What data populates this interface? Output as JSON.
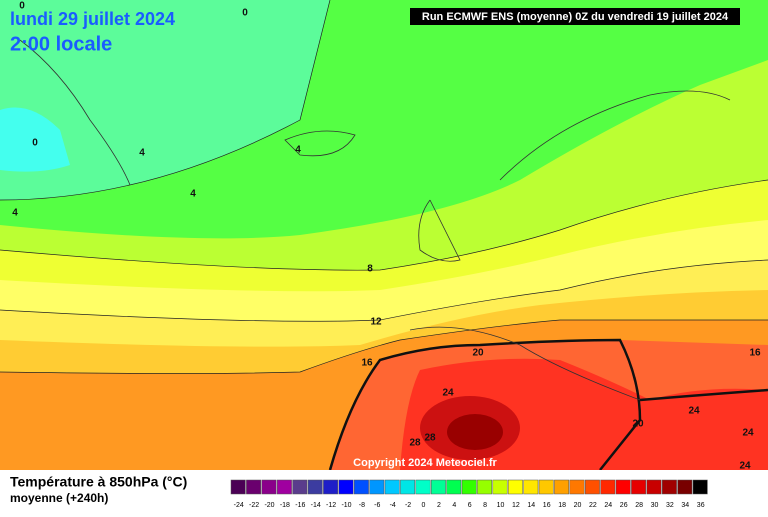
{
  "header": {
    "date": "lundi 29 juillet 2024",
    "time": "2:00 locale",
    "run": "Run ECMWF ENS (moyenne) 0Z du vendredi 19 juillet 2024"
  },
  "copyright": "Copyright 2024 Meteociel.fr",
  "contour_labels": [
    0,
    0,
    0,
    4,
    4,
    4,
    4,
    8,
    12,
    16,
    16,
    20,
    20,
    24,
    24,
    24,
    24,
    28,
    28
  ],
  "legend": {
    "title": "Température à 850hPa (°C)",
    "subtitle": "moyenne  (+240h)",
    "values": [
      -24,
      -22,
      -20,
      -18,
      -16,
      -14,
      -12,
      -10,
      -8,
      -6,
      -4,
      -2,
      0,
      2,
      4,
      6,
      8,
      10,
      12,
      14,
      16,
      18,
      20,
      22,
      24,
      26,
      28,
      30,
      32,
      34,
      36
    ],
    "colors": [
      "#4b0055",
      "#6a006e",
      "#8a008a",
      "#a000a0",
      "#5a3c8c",
      "#3c3ca0",
      "#1e1ec8",
      "#0000ff",
      "#0050ff",
      "#0096ff",
      "#00c8ff",
      "#00e6e6",
      "#00ffc8",
      "#00ff96",
      "#00ff50",
      "#32ff00",
      "#96ff00",
      "#c8ff00",
      "#ffff00",
      "#ffe600",
      "#ffc800",
      "#ffa000",
      "#ff7800",
      "#ff5000",
      "#ff2800",
      "#ff0000",
      "#e60000",
      "#c80000",
      "#a00000",
      "#780000",
      "#000000"
    ]
  }
}
